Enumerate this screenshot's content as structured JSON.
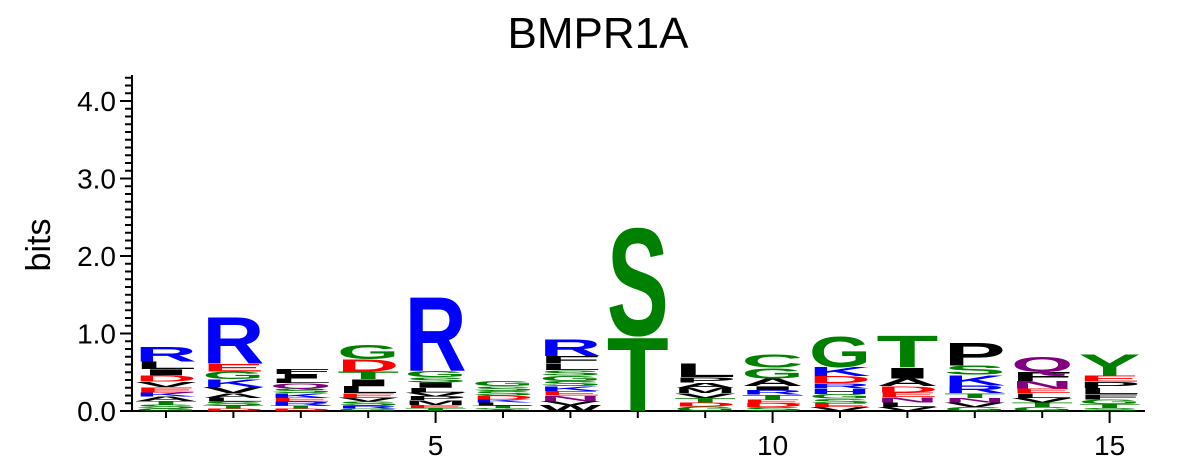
{
  "chart_data": {
    "type": "sequence-logo",
    "title": "BMPR1A",
    "ylabel": "bits",
    "xlabel": "",
    "ylim": [
      0,
      4.3
    ],
    "y_ticks": [
      "0.0",
      "1.0",
      "2.0",
      "3.0",
      "4.0"
    ],
    "x_ticks": [
      "5",
      "10",
      "15"
    ],
    "positions": [
      1,
      2,
      3,
      4,
      5,
      6,
      7,
      8,
      9,
      10,
      11,
      12,
      13,
      14,
      15
    ],
    "colors": {
      "R": "#0000ff",
      "K": "#0000ff",
      "H": "#0000ff",
      "D": "#ff0000",
      "E": "#ff0000",
      "S": "#008000",
      "T": "#008000",
      "G": "#008000",
      "Y": "#008000",
      "C": "#008000",
      "N": "#800080",
      "Q": "#800080",
      "A": "#000000",
      "V": "#000000",
      "L": "#000000",
      "I": "#000000",
      "P": "#000000",
      "F": "#000000",
      "M": "#000000",
      "W": "#000000"
    },
    "columns": [
      {
        "pos": 1,
        "letters": [
          [
            "G",
            0.03
          ],
          [
            "S",
            0.05
          ],
          [
            "T",
            0.05
          ],
          [
            "A",
            0.06
          ],
          [
            "K",
            0.05
          ],
          [
            "E",
            0.07
          ],
          [
            "V",
            0.07
          ],
          [
            "D",
            0.08
          ],
          [
            "I",
            0.08
          ],
          [
            "L",
            0.1
          ],
          [
            "R",
            0.2
          ]
        ]
      },
      {
        "pos": 2,
        "letters": [
          [
            "D",
            0.03
          ],
          [
            "T",
            0.04
          ],
          [
            "S",
            0.05
          ],
          [
            "L",
            0.05
          ],
          [
            "A",
            0.06
          ],
          [
            "V",
            0.08
          ],
          [
            "K",
            0.1
          ],
          [
            "G",
            0.1
          ],
          [
            "E",
            0.1
          ],
          [
            "R",
            0.62
          ]
        ]
      },
      {
        "pos": 3,
        "letters": [
          [
            "D",
            0.03
          ],
          [
            "T",
            0.04
          ],
          [
            "R",
            0.05
          ],
          [
            "E",
            0.05
          ],
          [
            "K",
            0.06
          ],
          [
            "S",
            0.06
          ],
          [
            "Q",
            0.07
          ],
          [
            "L",
            0.06
          ],
          [
            "I",
            0.06
          ],
          [
            "F",
            0.07
          ]
        ]
      },
      {
        "pos": 4,
        "letters": [
          [
            "G",
            0.03
          ],
          [
            "R",
            0.04
          ],
          [
            "S",
            0.05
          ],
          [
            "V",
            0.05
          ],
          [
            "E",
            0.06
          ],
          [
            "L",
            0.09
          ],
          [
            "I",
            0.09
          ],
          [
            "T",
            0.1
          ],
          [
            "D",
            0.16
          ],
          [
            "G",
            0.19
          ]
        ]
      },
      {
        "pos": 5,
        "letters": [
          [
            "T",
            0.04
          ],
          [
            "E",
            0.04
          ],
          [
            "M",
            0.06
          ],
          [
            "P",
            0.05
          ],
          [
            "V",
            0.05
          ],
          [
            "L",
            0.06
          ],
          [
            "I",
            0.07
          ],
          [
            "S",
            0.07
          ],
          [
            "G",
            0.08
          ],
          [
            "R",
            0.98
          ]
        ]
      },
      {
        "pos": 6,
        "letters": [
          [
            "A",
            0.02
          ],
          [
            "G",
            0.02
          ],
          [
            "T",
            0.03
          ],
          [
            "L",
            0.04
          ],
          [
            "K",
            0.04
          ],
          [
            "D",
            0.05
          ],
          [
            "S",
            0.06
          ],
          [
            "S",
            0.06
          ],
          [
            "G",
            0.07
          ]
        ]
      },
      {
        "pos": 7,
        "letters": [
          [
            "W",
            0.08
          ],
          [
            "V",
            0.05
          ],
          [
            "N",
            0.07
          ],
          [
            "E",
            0.06
          ],
          [
            "K",
            0.06
          ],
          [
            "S",
            0.07
          ],
          [
            "G",
            0.07
          ],
          [
            "S",
            0.07
          ],
          [
            "L",
            0.08
          ],
          [
            "F",
            0.1
          ],
          [
            "R",
            0.22
          ]
        ]
      },
      {
        "pos": 8,
        "letters": [
          [
            "T",
            0.98
          ],
          [
            "S",
            1.42
          ]
        ]
      },
      {
        "pos": 9,
        "letters": [
          [
            "G",
            0.06
          ],
          [
            "D",
            0.05
          ],
          [
            "T",
            0.06
          ],
          [
            "V",
            0.06
          ],
          [
            "M",
            0.07
          ],
          [
            "A",
            0.07
          ],
          [
            "P",
            0.07
          ],
          [
            "L",
            0.18
          ]
        ]
      },
      {
        "pos": 10,
        "letters": [
          [
            "S",
            0.05
          ],
          [
            "D",
            0.05
          ],
          [
            "E",
            0.05
          ],
          [
            "T",
            0.06
          ],
          [
            "R",
            0.06
          ],
          [
            "I",
            0.05
          ],
          [
            "A",
            0.1
          ],
          [
            "G",
            0.14
          ],
          [
            "C",
            0.17
          ]
        ]
      },
      {
        "pos": 11,
        "letters": [
          [
            "V",
            0.05
          ],
          [
            "E",
            0.05
          ],
          [
            "S",
            0.06
          ],
          [
            "G",
            0.06
          ],
          [
            "H",
            0.07
          ],
          [
            "R",
            0.07
          ],
          [
            "D",
            0.09
          ],
          [
            "K",
            0.12
          ],
          [
            "G",
            0.4
          ]
        ]
      },
      {
        "pos": 12,
        "letters": [
          [
            "V",
            0.05
          ],
          [
            "L",
            0.06
          ],
          [
            "N",
            0.07
          ],
          [
            "E",
            0.06
          ],
          [
            "D",
            0.08
          ],
          [
            "A",
            0.1
          ],
          [
            "I",
            0.14
          ],
          [
            "T",
            0.42
          ]
        ]
      },
      {
        "pos": 13,
        "letters": [
          [
            "G",
            0.05
          ],
          [
            "V",
            0.06
          ],
          [
            "N",
            0.06
          ],
          [
            "T",
            0.06
          ],
          [
            "R",
            0.1
          ],
          [
            "K",
            0.14
          ],
          [
            "S",
            0.12
          ],
          [
            "P",
            0.3
          ]
        ]
      },
      {
        "pos": 14,
        "letters": [
          [
            "G",
            0.05
          ],
          [
            "T",
            0.06
          ],
          [
            "V",
            0.06
          ],
          [
            "L",
            0.06
          ],
          [
            "E",
            0.06
          ],
          [
            "N",
            0.1
          ],
          [
            "F",
            0.12
          ],
          [
            "Q",
            0.2
          ]
        ]
      },
      {
        "pos": 15,
        "letters": [
          [
            "S",
            0.04
          ],
          [
            "T",
            0.05
          ],
          [
            "G",
            0.06
          ],
          [
            "F",
            0.07
          ],
          [
            "L",
            0.08
          ],
          [
            "P",
            0.08
          ],
          [
            "E",
            0.08
          ],
          [
            "Y",
            0.28
          ]
        ]
      }
    ]
  }
}
